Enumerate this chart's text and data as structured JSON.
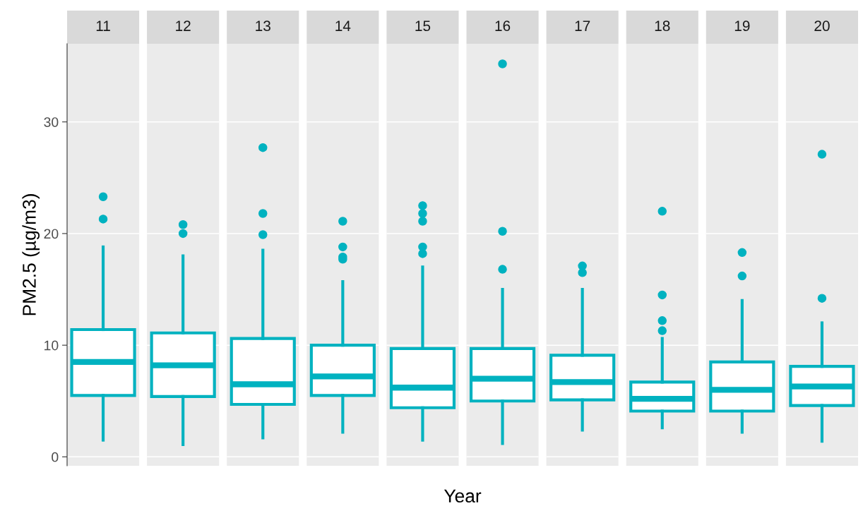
{
  "chart_data": {
    "type": "box",
    "xlabel": "Year",
    "ylabel": "PM2.5 (µg/m3)",
    "categories": [
      "11",
      "12",
      "13",
      "14",
      "15",
      "16",
      "17",
      "18",
      "19",
      "20"
    ],
    "series": [
      {
        "color": "#00b2c0",
        "boxes": [
          {
            "low": 1.5,
            "q1": 5.5,
            "median": 8.5,
            "q3": 11.4,
            "high": 18.8,
            "outliers": [
              21.3,
              23.3
            ]
          },
          {
            "low": 1.1,
            "q1": 5.4,
            "median": 8.2,
            "q3": 11.1,
            "high": 18.0,
            "outliers": [
              20.0,
              20.8
            ]
          },
          {
            "low": 1.7,
            "q1": 4.7,
            "median": 6.5,
            "q3": 10.6,
            "high": 18.5,
            "outliers": [
              19.9,
              21.8,
              27.7
            ]
          },
          {
            "low": 2.2,
            "q1": 5.5,
            "median": 7.2,
            "q3": 10.0,
            "high": 15.7,
            "outliers": [
              17.7,
              17.9,
              18.8,
              21.1
            ]
          },
          {
            "low": 1.5,
            "q1": 4.4,
            "median": 6.2,
            "q3": 9.7,
            "high": 17.0,
            "outliers": [
              18.2,
              18.8,
              21.1,
              21.8,
              22.5
            ]
          },
          {
            "low": 1.2,
            "q1": 5.0,
            "median": 7.0,
            "q3": 9.7,
            "high": 15.0,
            "outliers": [
              16.8,
              20.2,
              35.2
            ]
          },
          {
            "low": 2.4,
            "q1": 5.1,
            "median": 6.7,
            "q3": 9.1,
            "high": 15.0,
            "outliers": [
              16.5,
              17.1
            ]
          },
          {
            "low": 2.6,
            "q1": 4.1,
            "median": 5.2,
            "q3": 6.7,
            "high": 10.6,
            "outliers": [
              11.3,
              12.2,
              14.5,
              22.0
            ]
          },
          {
            "low": 2.2,
            "q1": 4.1,
            "median": 6.0,
            "q3": 8.5,
            "high": 14.0,
            "outliers": [
              16.2,
              18.3
            ]
          },
          {
            "low": 1.4,
            "q1": 4.6,
            "median": 6.3,
            "q3": 8.1,
            "high": 12.0,
            "outliers": [
              14.2,
              27.1
            ]
          }
        ]
      }
    ],
    "ylim": [
      -0.8,
      37
    ],
    "yticks": [
      0,
      10,
      20,
      30
    ],
    "grid": "y",
    "tick_labels": "y"
  }
}
